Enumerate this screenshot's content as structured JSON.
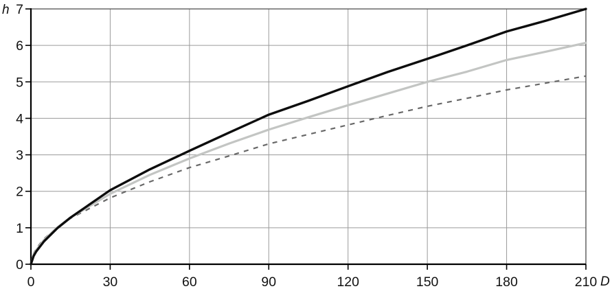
{
  "chart_data": {
    "type": "line",
    "title": "",
    "xlabel": "D",
    "ylabel": "h",
    "xlim": [
      0,
      210
    ],
    "ylim": [
      0,
      7
    ],
    "x_ticks": [
      0,
      30,
      60,
      90,
      120,
      150,
      180,
      210
    ],
    "y_ticks": [
      0,
      1,
      2,
      3,
      4,
      5,
      6,
      7
    ],
    "grid": true,
    "legend_position": "none",
    "axis_color": "#000000",
    "frame_color": "#4a4a4a",
    "grid_color": "#9a9a9a",
    "x": [
      0,
      1,
      2,
      5,
      10,
      15,
      30,
      45,
      60,
      75,
      90,
      105,
      120,
      135,
      150,
      165,
      180,
      195,
      210
    ],
    "series": [
      {
        "name": "upper-solid-black",
        "style": "solid",
        "color": "#0d0d0d",
        "width": 3.4,
        "values": [
          0,
          0.22,
          0.35,
          0.63,
          0.99,
          1.28,
          2.03,
          2.6,
          3.11,
          3.61,
          4.1,
          4.48,
          4.88,
          5.27,
          5.63,
          6.0,
          6.38,
          6.68,
          7.0
        ]
      },
      {
        "name": "middle-solid-lightgray",
        "style": "solid",
        "color": "#c3c5c3",
        "width": 3.2,
        "values": [
          0,
          0.26,
          0.39,
          0.67,
          1.01,
          1.28,
          1.93,
          2.45,
          2.9,
          3.31,
          3.69,
          4.03,
          4.36,
          4.68,
          5.0,
          5.28,
          5.6,
          5.83,
          6.07
        ]
      },
      {
        "name": "lower-dashed-gray",
        "style": "dashed",
        "color": "#686868",
        "width": 2.2,
        "values": [
          0,
          0.29,
          0.43,
          0.7,
          1.01,
          1.26,
          1.82,
          2.26,
          2.65,
          2.97,
          3.3,
          3.56,
          3.82,
          4.08,
          4.33,
          4.55,
          4.78,
          4.97,
          5.16
        ]
      }
    ]
  }
}
